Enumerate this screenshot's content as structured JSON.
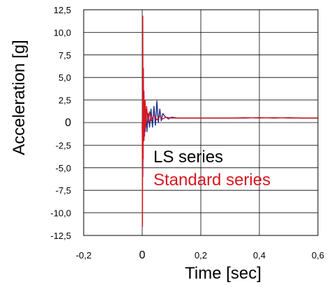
{
  "chart_data": {
    "type": "line",
    "title": "",
    "xlabel": "Time [sec]",
    "ylabel": "Acceleration [g]",
    "xlim": [
      -0.2,
      0.6
    ],
    "ylim": [
      -12.5,
      12.5
    ],
    "x_ticks": [
      -0.2,
      0,
      0.2,
      0.4,
      0.6
    ],
    "x_tick_labels": [
      "-0,2",
      "0",
      "0,2",
      "0,4",
      "0,6"
    ],
    "y_ticks": [
      12.5,
      10.0,
      7.5,
      5.0,
      2.5,
      0,
      -2.5,
      -5.0,
      -7.5,
      -10.0,
      -12.5
    ],
    "y_tick_labels": [
      "12,5",
      "10,0",
      "7,5",
      "5,0",
      "2,5",
      "0",
      "-2,5",
      "-5,0",
      "-7,5",
      "-10,0",
      "-12,5"
    ],
    "grid": true,
    "legend_position": "lower-right",
    "series": [
      {
        "name": "LS series",
        "color": "#1f2f8c",
        "x": [
          0.0,
          0.002,
          0.004,
          0.006,
          0.008,
          0.01,
          0.013,
          0.016,
          0.02,
          0.025,
          0.03,
          0.035,
          0.04,
          0.045,
          0.05,
          0.055,
          0.06,
          0.065,
          0.07,
          0.08,
          0.09,
          0.1,
          0.12,
          0.15,
          0.2,
          0.25,
          0.3,
          0.35,
          0.4,
          0.45,
          0.5,
          0.55,
          0.6
        ],
        "y": [
          0.0,
          -6.0,
          3.0,
          -2.0,
          1.5,
          -1.0,
          1.5,
          -1.0,
          1.0,
          -0.5,
          1.5,
          -0.5,
          1.8,
          -0.3,
          2.4,
          0.0,
          1.5,
          0.2,
          1.0,
          0.6,
          0.4,
          0.6,
          0.5,
          0.5,
          0.5,
          0.5,
          0.5,
          0.5,
          0.55,
          0.5,
          0.55,
          0.5,
          0.5
        ]
      },
      {
        "name": "Standard series",
        "color": "#d71920",
        "x": [
          0.0,
          0.001,
          0.002,
          0.003,
          0.004,
          0.005,
          0.006,
          0.008,
          0.01,
          0.012,
          0.015,
          0.02,
          0.025,
          0.03,
          0.04,
          0.05,
          0.06,
          0.07,
          0.08,
          0.1,
          0.15,
          0.2,
          0.25,
          0.3,
          0.35,
          0.4,
          0.45,
          0.5,
          0.55,
          0.6
        ],
        "y": [
          0.0,
          -11.5,
          11.8,
          -4.0,
          6.0,
          -2.0,
          3.5,
          -1.5,
          2.5,
          -0.5,
          1.8,
          0.0,
          1.2,
          0.2,
          0.8,
          0.3,
          0.7,
          0.4,
          0.6,
          0.5,
          0.5,
          0.5,
          0.5,
          0.5,
          0.55,
          0.5,
          0.55,
          0.5,
          0.5,
          0.5
        ]
      }
    ]
  }
}
